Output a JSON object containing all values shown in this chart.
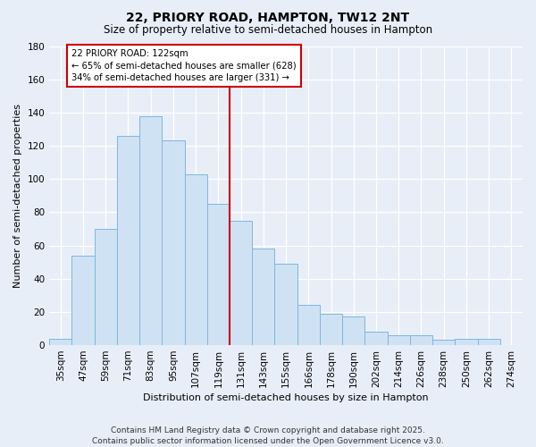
{
  "title": "22, PRIORY ROAD, HAMPTON, TW12 2NT",
  "subtitle": "Size of property relative to semi-detached houses in Hampton",
  "xlabel": "Distribution of semi-detached houses by size in Hampton",
  "ylabel": "Number of semi-detached properties",
  "bar_labels": [
    "35sqm",
    "47sqm",
    "59sqm",
    "71sqm",
    "83sqm",
    "95sqm",
    "107sqm",
    "119sqm",
    "131sqm",
    "143sqm",
    "155sqm",
    "166sqm",
    "178sqm",
    "190sqm",
    "202sqm",
    "214sqm",
    "226sqm",
    "238sqm",
    "250sqm",
    "262sqm",
    "274sqm"
  ],
  "bar_values": [
    4,
    54,
    70,
    126,
    138,
    123,
    103,
    85,
    75,
    58,
    49,
    24,
    19,
    17,
    8,
    6,
    6,
    3,
    4,
    4,
    0
  ],
  "bar_color": "#cfe2f3",
  "bar_edge_color": "#7eb6e0",
  "highlight_line_index": 7,
  "highlight_line_color": "#cc0000",
  "annotation_title": "22 PRIORY ROAD: 122sqm",
  "annotation_line1": "← 65% of semi-detached houses are smaller (628)",
  "annotation_line2": "34% of semi-detached houses are larger (331) →",
  "annotation_box_color": "#ffffff",
  "annotation_box_edge": "#cc0000",
  "ylim": [
    0,
    180
  ],
  "yticks": [
    0,
    20,
    40,
    60,
    80,
    100,
    120,
    140,
    160,
    180
  ],
  "footer_line1": "Contains HM Land Registry data © Crown copyright and database right 2025.",
  "footer_line2": "Contains public sector information licensed under the Open Government Licence v3.0.",
  "bg_color": "#e8eef8",
  "grid_color": "#ffffff",
  "title_fontsize": 10,
  "subtitle_fontsize": 8.5,
  "xlabel_fontsize": 8,
  "ylabel_fontsize": 8,
  "tick_fontsize": 7.5,
  "footer_fontsize": 6.5
}
